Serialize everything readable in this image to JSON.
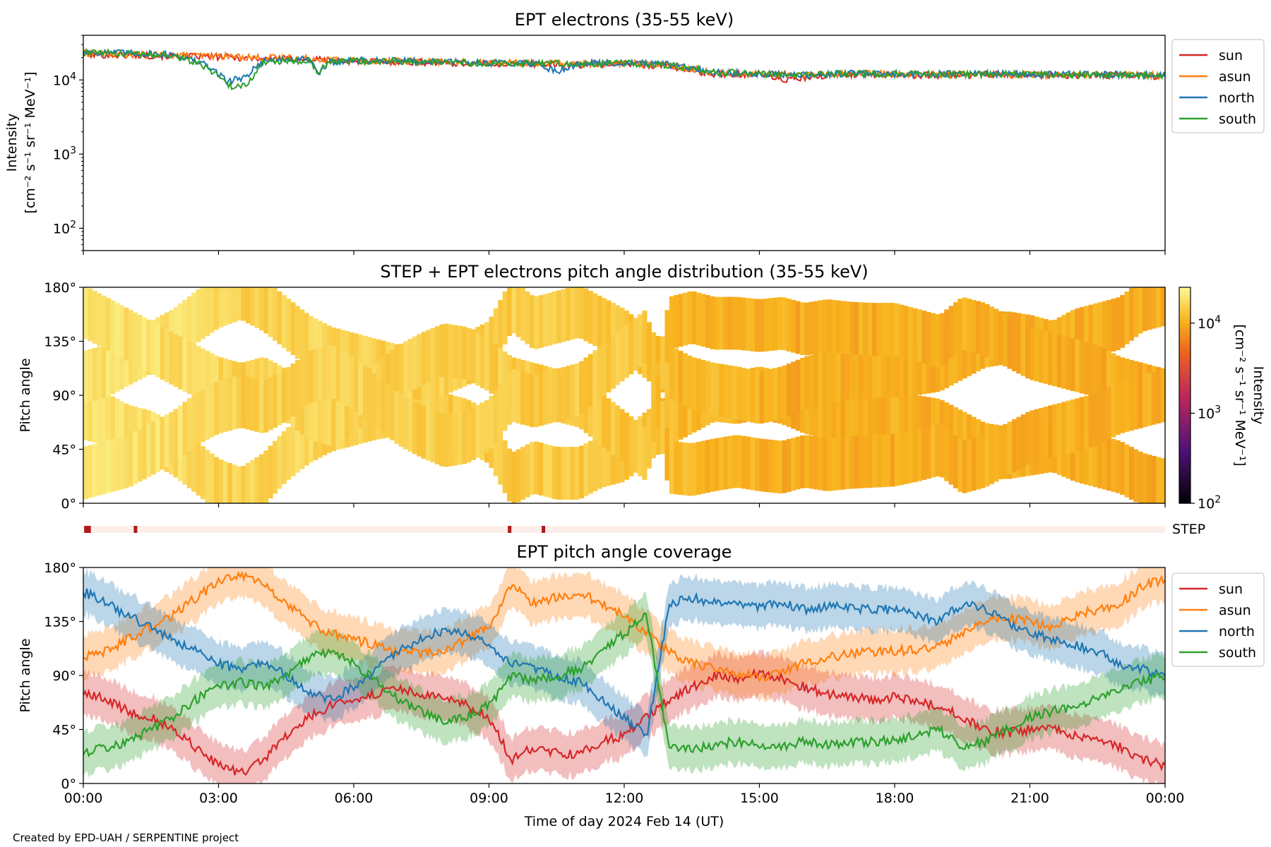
{
  "credit": "Created by EPD-UAH / SERPENTINE project",
  "colors": {
    "sun": "#d62728",
    "asun": "#ff7f0e",
    "north": "#1f77b4",
    "south": "#2ca02c",
    "step_bar_bg": "#fdeeea",
    "step_bar_mark": "#b01a1a"
  },
  "x_axis": {
    "label": "Time of day 2024 Feb 14 (UT)",
    "ticks": [
      "00:00",
      "03:00",
      "06:00",
      "09:00",
      "12:00",
      "15:00",
      "18:00",
      "21:00",
      "00:00"
    ],
    "range_hours": [
      0,
      24
    ]
  },
  "chart_data": [
    {
      "type": "line",
      "title": "EPT electrons (35-55 keV)",
      "ylabel": "Intensity",
      "yunits": "[cm⁻² s⁻¹ sr⁻¹ MeV⁻¹]",
      "yscale": "log",
      "ylim": [
        50,
        40000
      ],
      "yticks": [
        {
          "value": 100,
          "base": "10",
          "exp": "2"
        },
        {
          "value": 1000,
          "base": "10",
          "exp": "3"
        },
        {
          "value": 10000,
          "base": "10",
          "exp": "4"
        }
      ],
      "legend": "outside-right",
      "series": [
        {
          "name": "sun",
          "color": "#d62728",
          "x": [
            0,
            1,
            2,
            3,
            4,
            5,
            6,
            7,
            8,
            9,
            10,
            11,
            12,
            13,
            13.5,
            14,
            15,
            15.5,
            16,
            17,
            18,
            19,
            20,
            21,
            22,
            23,
            24
          ],
          "y": [
            22000,
            21500,
            21000,
            20500,
            19500,
            19000,
            18000,
            17500,
            17000,
            16500,
            16500,
            16000,
            16500,
            15500,
            13000,
            12000,
            12000,
            10000,
            10500,
            12000,
            11800,
            11500,
            11800,
            11600,
            11500,
            11500,
            11200
          ]
        },
        {
          "name": "asun",
          "color": "#ff7f0e",
          "x": [
            0,
            1,
            2,
            3,
            4,
            5,
            6,
            7,
            8,
            9,
            10,
            11,
            12,
            13,
            14,
            15,
            16,
            17,
            18,
            19,
            20,
            21,
            22,
            23,
            24
          ],
          "y": [
            23000,
            22000,
            21500,
            21000,
            20000,
            19500,
            18500,
            18000,
            17500,
            17000,
            16800,
            16500,
            16800,
            15800,
            12500,
            12200,
            11800,
            12200,
            12000,
            11800,
            12000,
            11800,
            11800,
            11700,
            11500
          ]
        },
        {
          "name": "north",
          "color": "#1f77b4",
          "x": [
            0,
            1,
            2,
            2.7,
            3.2,
            3.6,
            4,
            5,
            5.2,
            5.5,
            6,
            7,
            8,
            9,
            10,
            10.5,
            11,
            12,
            13,
            14,
            15,
            16,
            17,
            18,
            19,
            20,
            21,
            22,
            23,
            24
          ],
          "y": [
            24000,
            23000,
            22000,
            16000,
            9500,
            11000,
            18000,
            19000,
            12000,
            17500,
            18500,
            18000,
            17500,
            17000,
            17000,
            13000,
            16500,
            17000,
            16000,
            12500,
            12300,
            11500,
            12300,
            12000,
            12000,
            12100,
            11900,
            11900,
            11800,
            11500
          ]
        },
        {
          "name": "south",
          "color": "#2ca02c",
          "x": [
            0,
            1,
            2,
            2.7,
            3.3,
            3.7,
            4,
            5,
            5.2,
            5.5,
            6,
            7,
            8,
            9,
            10,
            11,
            12,
            13,
            14,
            15,
            16,
            17,
            18,
            19,
            20,
            21,
            22,
            23,
            24
          ],
          "y": [
            23500,
            22500,
            21500,
            15000,
            7800,
            9500,
            17500,
            18500,
            12500,
            17500,
            18000,
            17800,
            17300,
            16800,
            16800,
            16300,
            16800,
            15800,
            12800,
            12200,
            11600,
            12200,
            12000,
            11900,
            12000,
            11800,
            11800,
            11700,
            11400
          ]
        }
      ]
    },
    {
      "type": "heatmap",
      "title": "STEP + EPT electrons pitch angle distribution (35-55 keV)",
      "ylabel": "Pitch angle",
      "yticks": [
        "0°",
        "45°",
        "90°",
        "135°",
        "180°"
      ],
      "ylim": [
        0,
        180
      ],
      "colorbar": {
        "label": "Intensity",
        "units": "[cm⁻² s⁻¹ sr⁻¹ MeV⁻¹]",
        "scale": "log",
        "range": [
          100,
          25000
        ],
        "ticks": [
          {
            "value": 100,
            "base": "10",
            "exp": "2"
          },
          {
            "value": 1000,
            "base": "10",
            "exp": "3"
          },
          {
            "value": 10000,
            "base": "10",
            "exp": "4"
          }
        ]
      },
      "intensity_profile": {
        "x": [
          0,
          2,
          3.5,
          5,
          8,
          10,
          12,
          13,
          15,
          16,
          18,
          21,
          24
        ],
        "y": [
          21000,
          20000,
          17000,
          18000,
          16500,
          16000,
          15500,
          13000,
          12000,
          11000,
          11500,
          11500,
          11000
        ]
      },
      "step_label": "STEP",
      "step_marks_hours": [
        0.05,
        0.12,
        1.15,
        9.45,
        10.2
      ]
    },
    {
      "type": "line",
      "title": "EPT pitch angle coverage",
      "ylabel": "Pitch angle",
      "yticks": [
        "0°",
        "45°",
        "90°",
        "135°",
        "180°"
      ],
      "ylim": [
        0,
        180
      ],
      "legend": "outside-right",
      "series": [
        {
          "name": "sun",
          "color": "#d62728",
          "x": [
            0,
            0.5,
            1,
            1.5,
            2,
            2.5,
            3,
            3.5,
            4,
            4.5,
            5,
            5.5,
            6,
            6.5,
            7,
            7.5,
            8,
            8.5,
            9,
            9.5,
            10,
            10.5,
            11,
            11.5,
            12,
            12.5,
            13,
            13.5,
            14,
            14.5,
            15,
            15.5,
            16,
            16.5,
            17,
            17.5,
            18,
            18.5,
            19,
            19.5,
            20,
            20.5,
            21,
            21.5,
            22,
            22.5,
            23,
            23.5,
            24
          ],
          "y": [
            75,
            70,
            60,
            55,
            45,
            30,
            15,
            8,
            20,
            40,
            55,
            65,
            70,
            75,
            78,
            75,
            70,
            65,
            55,
            20,
            30,
            25,
            25,
            35,
            40,
            55,
            70,
            80,
            90,
            88,
            92,
            88,
            80,
            75,
            72,
            70,
            72,
            68,
            65,
            55,
            45,
            42,
            45,
            48,
            40,
            35,
            30,
            20,
            15
          ]
        },
        {
          "name": "asun",
          "color": "#ff7f0e",
          "x": [
            0,
            0.5,
            1,
            1.5,
            2,
            2.5,
            3,
            3.5,
            4,
            4.5,
            5,
            5.5,
            6,
            6.5,
            7,
            7.5,
            8,
            8.5,
            9,
            9.5,
            10,
            10.5,
            11,
            11.5,
            12,
            12.5,
            13,
            13.5,
            14,
            14.5,
            15,
            15.5,
            16,
            16.5,
            17,
            17.5,
            18,
            18.5,
            19,
            19.5,
            20,
            20.5,
            21,
            21.5,
            22,
            22.5,
            23,
            23.5,
            24
          ],
          "y": [
            105,
            110,
            120,
            130,
            140,
            155,
            168,
            175,
            165,
            150,
            135,
            125,
            120,
            115,
            110,
            108,
            112,
            120,
            130,
            165,
            150,
            155,
            160,
            150,
            140,
            125,
            110,
            100,
            95,
            92,
            88,
            92,
            100,
            105,
            108,
            110,
            110,
            112,
            115,
            125,
            135,
            138,
            135,
            130,
            140,
            145,
            150,
            165,
            170
          ]
        },
        {
          "name": "north",
          "color": "#1f77b4",
          "x": [
            0,
            0.5,
            1,
            1.5,
            2,
            2.5,
            3,
            3.5,
            4,
            4.5,
            5,
            5.5,
            6,
            6.5,
            7,
            7.5,
            8,
            8.5,
            9,
            9.5,
            10,
            10.5,
            11,
            11.5,
            12,
            12.5,
            13,
            13.5,
            14,
            14.5,
            15,
            15.5,
            16,
            16.5,
            17,
            17.5,
            18,
            18.5,
            19,
            19.5,
            20,
            20.5,
            21,
            21.5,
            22,
            22.5,
            23,
            23.5,
            24
          ],
          "y": [
            160,
            150,
            140,
            130,
            120,
            110,
            100,
            95,
            100,
            90,
            75,
            70,
            80,
            95,
            110,
            120,
            128,
            125,
            115,
            100,
            95,
            90,
            85,
            70,
            55,
            40,
            150,
            155,
            150,
            150,
            148,
            150,
            145,
            148,
            146,
            145,
            145,
            140,
            135,
            150,
            145,
            135,
            125,
            120,
            115,
            110,
            100,
            95,
            90
          ]
        },
        {
          "name": "south",
          "color": "#2ca02c",
          "x": [
            0,
            0.5,
            1,
            1.5,
            2,
            2.5,
            3,
            3.5,
            4,
            4.5,
            5,
            5.5,
            6,
            6.5,
            7,
            7.5,
            8,
            8.5,
            9,
            9.5,
            10,
            10.5,
            11,
            11.5,
            12,
            12.5,
            13,
            13.5,
            14,
            14.5,
            15,
            15.5,
            16,
            16.5,
            17,
            17.5,
            18,
            18.5,
            19,
            19.5,
            20,
            20.5,
            21,
            21.5,
            22,
            22.5,
            23,
            23.5,
            24
          ],
          "y": [
            25,
            30,
            35,
            45,
            55,
            70,
            80,
            85,
            80,
            90,
            105,
            110,
            100,
            85,
            70,
            60,
            52,
            55,
            65,
            90,
            85,
            90,
            95,
            110,
            125,
            140,
            30,
            28,
            32,
            35,
            32,
            30,
            35,
            32,
            34,
            35,
            36,
            40,
            45,
            30,
            35,
            45,
            55,
            60,
            65,
            70,
            80,
            85,
            90
          ]
        }
      ]
    }
  ]
}
